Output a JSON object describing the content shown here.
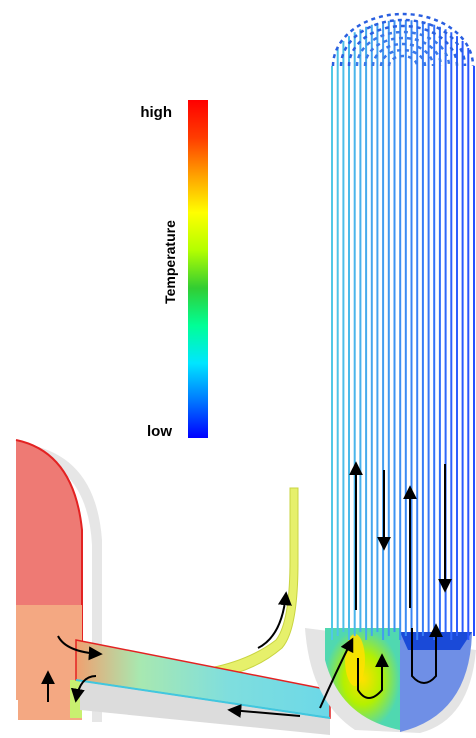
{
  "legend": {
    "title": "Temperature",
    "high_label": "high",
    "low_label": "low",
    "gradient": [
      "#0000ff",
      "#0078ff",
      "#00e6ff",
      "#00ff96",
      "#32cd32",
      "#b4ff00",
      "#ffff00",
      "#ffa000",
      "#ff3c00",
      "#ff0000"
    ]
  },
  "colors": {
    "hot_vessel": "#ee7a74",
    "hot_edge": "#e32222",
    "mixed_pipe": "#7fdede",
    "branch_pipe": "#e6f06b",
    "cold_tube": "#3a78e8",
    "cold_plenum": "#6f8fe6",
    "shadow": "#e6e6e6",
    "arrow": "#000000"
  },
  "arrows": [
    "vessel-inlet-up-arrow",
    "vessel-outlet-right-arrow",
    "vessel-bottom-down-arrow",
    "branch-pipe-up-arrow",
    "main-pipe-left-arrow",
    "plenum-up-arrow",
    "plenum-loop-arrow",
    "tube-left-up-arrow",
    "tube-left-down-arrow",
    "tube-middle-up-arrow",
    "tube-right-down-arrow",
    "tube-right-loop-arrow"
  ]
}
